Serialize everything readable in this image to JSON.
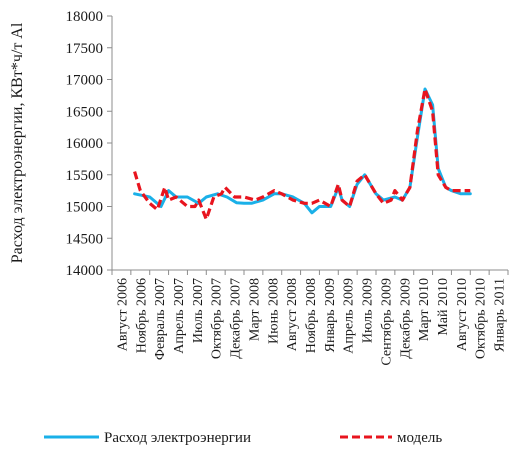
{
  "chart_data": {
    "type": "line",
    "ylabel": "Расход электроэнергии, КВт*ч/т Al",
    "ylim": [
      14000,
      18000
    ],
    "yticks": [
      "14000",
      "14500",
      "15000",
      "15500",
      "16000",
      "16500",
      "17000",
      "17500",
      "18000"
    ],
    "x": [
      "Август 2006",
      "Ноябрь 2006",
      "Февраль 2007",
      "Апрель 2007",
      "Июль 2007",
      "Октябрь 2007",
      "Декабрь 2007",
      "Март 2008",
      "Июнь 2008",
      "Август 2008",
      "Ноябрь 2008",
      "Январь 2009",
      "Апрель 2009",
      "Июль 2009",
      "Сентябрь 2009",
      "Декабрь 2009",
      "Март 2010",
      "Май 2010",
      "Август 2010",
      "Октябрь 2010",
      "Январь 2011"
    ],
    "grid": false,
    "legend_position": "bottom",
    "series": [
      {
        "name": "Расход электроэнергии",
        "color": "#1ab0e8",
        "style": "solid",
        "x": [
          1.2,
          2.0,
          2.6,
          3.0,
          3.4,
          4.0,
          4.6,
          5.0,
          5.6,
          6.1,
          6.6,
          7.0,
          7.4,
          8.0,
          8.6,
          9.0,
          9.6,
          10.2,
          10.6,
          11.0,
          11.6,
          12.0,
          12.2,
          12.6,
          13.0,
          13.4,
          14.0,
          14.4,
          15.0,
          15.4,
          15.8,
          16.2,
          16.6,
          17.0,
          17.3,
          17.7,
          18.0,
          18.5,
          19.0
        ],
        "y": [
          15200,
          15150,
          15000,
          15250,
          15150,
          15150,
          15050,
          15150,
          15200,
          15150,
          15060,
          15050,
          15050,
          15100,
          15200,
          15200,
          15150,
          15050,
          14900,
          15000,
          15000,
          15300,
          15100,
          15000,
          15350,
          15500,
          15200,
          15100,
          15150,
          15100,
          15300,
          16100,
          16850,
          16600,
          15600,
          15300,
          15250,
          15200,
          15200
        ]
      },
      {
        "name": "модель",
        "color": "#e8141e",
        "style": "dashed",
        "x": [
          1.2,
          1.5,
          2.0,
          2.4,
          2.8,
          3.0,
          3.4,
          4.0,
          4.4,
          4.6,
          5.0,
          5.4,
          5.8,
          6.0,
          6.5,
          7.0,
          7.6,
          8.0,
          8.6,
          9.0,
          9.6,
          10.2,
          10.6,
          11.0,
          11.6,
          12.0,
          12.2,
          12.6,
          13.0,
          13.4,
          14.0,
          14.4,
          14.8,
          15.0,
          15.4,
          15.8,
          16.2,
          16.6,
          17.0,
          17.3,
          17.7,
          18.0,
          18.5,
          19.0
        ],
        "y": [
          15550,
          15250,
          15050,
          14950,
          15300,
          15100,
          15150,
          15000,
          15000,
          15100,
          14800,
          15150,
          15200,
          15300,
          15150,
          15150,
          15100,
          15150,
          15250,
          15200,
          15100,
          15050,
          15050,
          15100,
          15000,
          15350,
          15100,
          15000,
          15400,
          15500,
          15200,
          15050,
          15100,
          15250,
          15100,
          15300,
          16200,
          16850,
          16500,
          15500,
          15300,
          15250,
          15250,
          15250
        ]
      }
    ]
  }
}
